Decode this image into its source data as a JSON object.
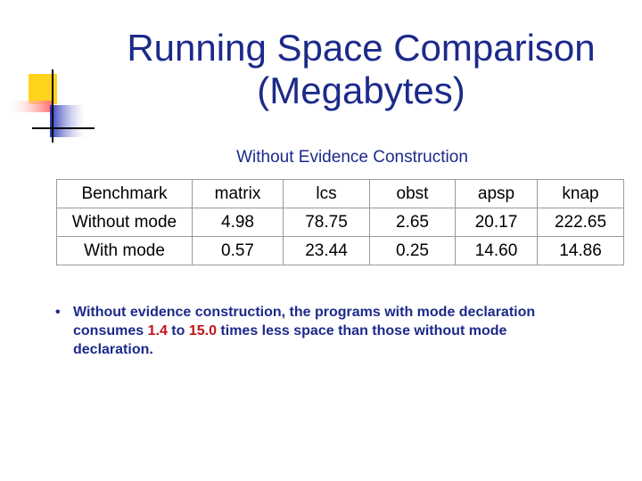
{
  "slide": {
    "title_line1": "Running Space Comparison",
    "title_line2": "(Megabytes)",
    "subtitle": "Without Evidence Construction"
  },
  "table": {
    "headers": [
      "Benchmark",
      "matrix",
      "lcs",
      "obst",
      "apsp",
      "knap"
    ],
    "rows": [
      [
        "Without mode",
        "4.98",
        "78.75",
        "2.65",
        "20.17",
        "222.65"
      ],
      [
        "With mode",
        "0.57",
        "23.44",
        "0.25",
        "14.60",
        "14.86"
      ]
    ]
  },
  "bullet": {
    "text_before": "Without evidence construction, the programs with mode declaration consumes ",
    "low": "1.4",
    "mid": " to ",
    "high": "15.0",
    "text_after": " times less space than those without mode declaration."
  },
  "colors": {
    "title": "#1c2a8a",
    "highlight": "#c0141a",
    "logo_yellow": "#ffd21c",
    "logo_red": "#ff6e6e",
    "logo_blue": "#4a55cc"
  }
}
